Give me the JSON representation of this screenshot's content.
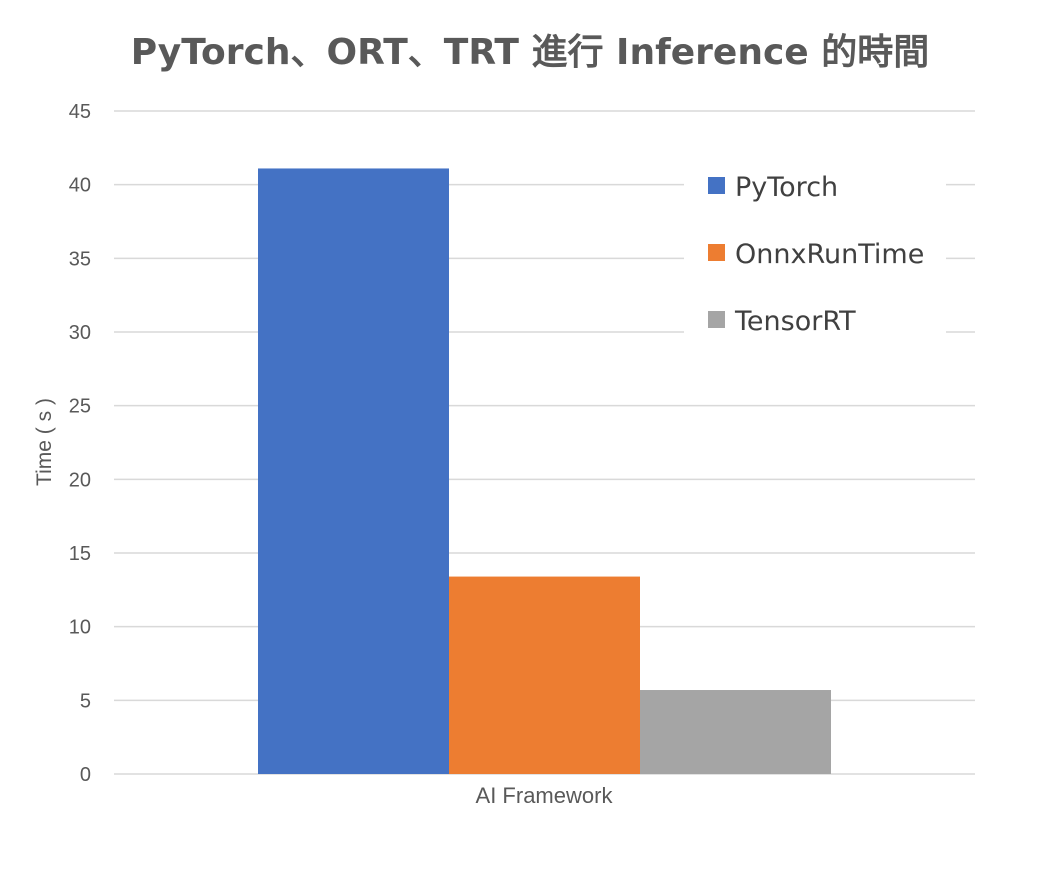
{
  "chart_data": {
    "type": "bar",
    "title": "PyTorch、ORT、TRT 進行 Inference 的時間",
    "xlabel": "AI Framework",
    "ylabel": "Time ( s )",
    "categories": [
      "AI Framework"
    ],
    "series": [
      {
        "name": "PyTorch",
        "values": [
          41.1
        ],
        "color": "#4472c4"
      },
      {
        "name": "OnnxRunTime",
        "values": [
          13.4
        ],
        "color": "#ed7d31"
      },
      {
        "name": "TensorRT",
        "values": [
          5.7
        ],
        "color": "#a5a5a5"
      }
    ],
    "ylim": [
      0,
      45
    ],
    "yticks": [
      0,
      5,
      10,
      15,
      20,
      25,
      30,
      35,
      40,
      45
    ],
    "grid": true,
    "legend_position": "top-right",
    "gridline_color": "#d9d9d9",
    "text_color": "#595959"
  }
}
